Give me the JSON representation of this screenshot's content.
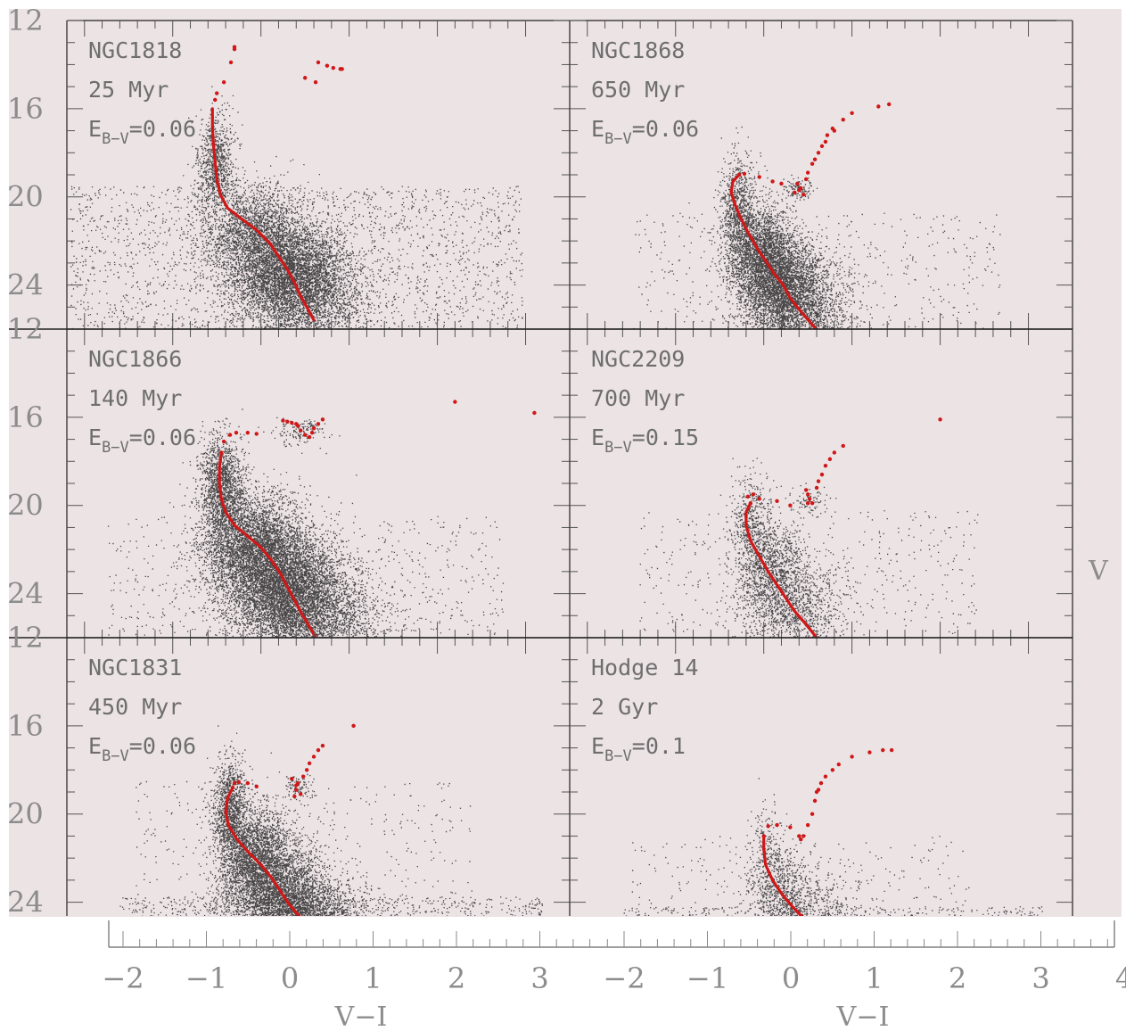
{
  "chart_data": {
    "type": "scatter",
    "layout": "3 rows x 2 columns of colour-magnitude diagrams sharing axes",
    "xlabel": "V−I",
    "ylabel": "V",
    "xlim": [
      -2.2,
      3.5
    ],
    "ylim": [
      12,
      26
    ],
    "y_inverted": true,
    "x_tick_labels": [
      "−2",
      "−1",
      "0",
      "1",
      "2",
      "3",
      "−2",
      "−1",
      "0",
      "1",
      "2",
      "3",
      "4"
    ],
    "x_ticks": [
      -2,
      -1,
      0,
      1,
      2,
      3
    ],
    "x_ticks_right": [
      -2,
      -1,
      0,
      1,
      2,
      3,
      4
    ],
    "y_tick_labels": [
      "12",
      "16",
      "20",
      "24"
    ],
    "y_ticks": [
      12,
      16,
      20,
      24
    ],
    "grid": false,
    "colors": {
      "stars": "#111111",
      "isochrone": "#d01818",
      "panel_bg": "#ece3e5",
      "label": "#6e6e6e"
    },
    "panels": [
      {
        "name": "NGC1818",
        "age": "25 Myr",
        "ebv_label": "E",
        "ebv_sub": "B−V",
        "ebv_value": "=0.06",
        "isochrone": [
          [
            -0.55,
            16.0
          ],
          [
            -0.55,
            16.8
          ],
          [
            -0.54,
            17.6
          ],
          [
            -0.52,
            18.4
          ],
          [
            -0.5,
            19.2
          ],
          [
            -0.46,
            19.9
          ],
          [
            -0.38,
            20.5
          ],
          [
            -0.22,
            21.0
          ],
          [
            -0.05,
            21.5
          ],
          [
            0.1,
            22.1
          ],
          [
            0.2,
            22.7
          ],
          [
            0.3,
            23.3
          ],
          [
            0.38,
            23.9
          ],
          [
            0.45,
            24.5
          ],
          [
            0.52,
            25.0
          ],
          [
            0.6,
            25.6
          ]
        ],
        "giants": [
          [
            -0.3,
            13.2
          ],
          [
            -0.3,
            13.3
          ],
          [
            -0.34,
            13.9
          ],
          [
            -0.42,
            14.8
          ],
          [
            -0.5,
            15.3
          ],
          [
            -0.52,
            15.6
          ],
          [
            0.65,
            13.9
          ],
          [
            0.75,
            14.05
          ],
          [
            0.82,
            14.15
          ],
          [
            0.9,
            14.2
          ],
          [
            0.92,
            14.2
          ],
          [
            0.5,
            14.6
          ],
          [
            0.62,
            14.8
          ]
        ],
        "stars": {
          "seed": 11,
          "ms": [
            [
              -0.52,
              18.5,
              0.1,
              900
            ],
            [
              -0.1,
              21.5,
              0.3,
              1800
            ],
            [
              0.3,
              23.3,
              0.35,
              4200
            ],
            [
              0.5,
              24.8,
              0.35,
              1800
            ]
          ],
          "field": [
            [
              0.4,
              23.0,
              1.6,
              2.5,
              2300
            ]
          ]
        }
      },
      {
        "name": "NGC1868",
        "age": "650 Myr",
        "ebv_label": "E",
        "ebv_sub": "B−V",
        "ebv_value": "=0.06",
        "isochrone": [
          [
            -0.28,
            19.0
          ],
          [
            -0.35,
            19.3
          ],
          [
            -0.37,
            19.8
          ],
          [
            -0.33,
            20.3
          ],
          [
            -0.27,
            20.9
          ],
          [
            -0.18,
            21.6
          ],
          [
            -0.08,
            22.3
          ],
          [
            0.02,
            22.9
          ],
          [
            0.12,
            23.5
          ],
          [
            0.22,
            24.0
          ],
          [
            0.3,
            24.6
          ],
          [
            0.42,
            25.2
          ],
          [
            0.55,
            25.8
          ],
          [
            0.6,
            26.0
          ]
        ],
        "giants": [
          [
            -0.28,
            19.0
          ],
          [
            -0.22,
            18.95
          ],
          [
            -0.05,
            19.1
          ],
          [
            0.1,
            19.3
          ],
          [
            0.2,
            19.4
          ],
          [
            0.35,
            19.8
          ],
          [
            0.38,
            19.4
          ],
          [
            0.42,
            19.6
          ],
          [
            0.45,
            19.9
          ],
          [
            0.4,
            19.7
          ],
          [
            0.48,
            19.2
          ],
          [
            0.5,
            18.9
          ],
          [
            0.55,
            18.5
          ],
          [
            0.58,
            18.3
          ],
          [
            0.62,
            18.0
          ],
          [
            0.66,
            17.7
          ],
          [
            0.7,
            17.5
          ],
          [
            0.72,
            17.2
          ],
          [
            0.78,
            16.9
          ],
          [
            0.8,
            17.0
          ],
          [
            0.9,
            16.5
          ],
          [
            1.0,
            16.2
          ],
          [
            1.3,
            15.9
          ],
          [
            1.42,
            15.8
          ]
        ],
        "stars": {
          "seed": 23,
          "ms": [
            [
              -0.3,
              20.3,
              0.1,
              700
            ],
            [
              -0.05,
              22.5,
              0.2,
              2400
            ],
            [
              0.2,
              24.0,
              0.25,
              3000
            ],
            [
              0.45,
              25.3,
              0.3,
              1500
            ]
          ],
          "clump": [
            [
              0.38,
              19.6,
              0.08,
              0.25,
              120
            ]
          ],
          "field": [
            [
              0.6,
              23.5,
              1.3,
              2.0,
              500
            ]
          ]
        }
      },
      {
        "name": "NGC1866",
        "age": "140 Myr",
        "ebv_label": "E",
        "ebv_sub": "B−V",
        "ebv_value": "=0.06",
        "isochrone": [
          [
            -0.45,
            17.6
          ],
          [
            -0.47,
            18.3
          ],
          [
            -0.47,
            19.0
          ],
          [
            -0.45,
            19.7
          ],
          [
            -0.4,
            20.3
          ],
          [
            -0.3,
            20.9
          ],
          [
            -0.15,
            21.4
          ],
          [
            0.0,
            21.9
          ],
          [
            0.12,
            22.5
          ],
          [
            0.22,
            23.1
          ],
          [
            0.3,
            23.7
          ],
          [
            0.38,
            24.3
          ],
          [
            0.46,
            24.9
          ],
          [
            0.55,
            25.5
          ],
          [
            0.62,
            26.0
          ]
        ],
        "giants": [
          [
            -0.45,
            17.6
          ],
          [
            -0.42,
            17.1
          ],
          [
            -0.35,
            16.8
          ],
          [
            -0.28,
            16.7
          ],
          [
            -0.15,
            16.7
          ],
          [
            -0.05,
            16.75
          ],
          [
            0.25,
            16.15
          ],
          [
            0.3,
            16.2
          ],
          [
            0.35,
            16.25
          ],
          [
            0.4,
            16.3
          ],
          [
            0.42,
            16.4
          ],
          [
            0.45,
            16.6
          ],
          [
            0.5,
            16.8
          ],
          [
            0.55,
            16.9
          ],
          [
            0.58,
            16.7
          ],
          [
            0.6,
            16.5
          ],
          [
            0.65,
            16.3
          ],
          [
            0.7,
            16.1
          ],
          [
            2.2,
            15.3
          ],
          [
            3.1,
            15.8
          ]
        ],
        "stars": {
          "seed": 37,
          "ms": [
            [
              -0.45,
              19.0,
              0.12,
              1500
            ],
            [
              -0.1,
              21.6,
              0.3,
              3500
            ],
            [
              0.25,
              23.6,
              0.35,
              5000
            ],
            [
              0.55,
              25.2,
              0.4,
              2500
            ]
          ],
          "clump": [
            [
              0.45,
              16.6,
              0.15,
              0.35,
              150
            ]
          ],
          "field": [
            [
              0.5,
              23.5,
              1.4,
              2.2,
              700
            ]
          ]
        }
      },
      {
        "name": "NGC2209",
        "age": "700 Myr",
        "ebv_label": "E",
        "ebv_sub": "B−V",
        "ebv_value": "=0.15",
        "isochrone": [
          [
            -0.15,
            19.9
          ],
          [
            -0.2,
            20.3
          ],
          [
            -0.2,
            20.9
          ],
          [
            -0.15,
            21.6
          ],
          [
            -0.05,
            22.3
          ],
          [
            0.05,
            23.0
          ],
          [
            0.15,
            23.6
          ],
          [
            0.25,
            24.2
          ],
          [
            0.35,
            24.8
          ],
          [
            0.48,
            25.4
          ],
          [
            0.6,
            26.0
          ]
        ],
        "giants": [
          [
            -0.15,
            19.9
          ],
          [
            -0.18,
            19.6
          ],
          [
            -0.12,
            19.5
          ],
          [
            -0.05,
            19.7
          ],
          [
            0.15,
            19.8
          ],
          [
            0.3,
            20.0
          ],
          [
            0.48,
            19.3
          ],
          [
            0.5,
            19.5
          ],
          [
            0.52,
            19.7
          ],
          [
            0.5,
            19.9
          ],
          [
            0.55,
            19.9
          ],
          [
            0.6,
            19.2
          ],
          [
            0.62,
            18.9
          ],
          [
            0.66,
            18.6
          ],
          [
            0.7,
            18.2
          ],
          [
            0.75,
            17.9
          ],
          [
            0.8,
            17.6
          ],
          [
            0.9,
            17.3
          ],
          [
            2.0,
            16.1
          ]
        ],
        "stars": {
          "seed": 41,
          "ms": [
            [
              -0.15,
              20.8,
              0.12,
              500
            ],
            [
              0.1,
              23.0,
              0.2,
              1200
            ],
            [
              0.35,
              24.8,
              0.3,
              1000
            ]
          ],
          "clump": [
            [
              0.52,
              19.7,
              0.1,
              0.3,
              80
            ]
          ],
          "field": [
            [
              0.5,
              23.0,
              1.2,
              2.0,
              450
            ]
          ]
        }
      },
      {
        "name": "NGC1831",
        "age": "450 Myr",
        "ebv_label": "E",
        "ebv_sub": "B−V",
        "ebv_value": "=0.06",
        "isochrone": [
          [
            -0.32,
            18.8
          ],
          [
            -0.38,
            19.3
          ],
          [
            -0.4,
            19.9
          ],
          [
            -0.37,
            20.5
          ],
          [
            -0.28,
            21.1
          ],
          [
            -0.15,
            21.7
          ],
          [
            0.0,
            22.3
          ],
          [
            0.12,
            22.9
          ],
          [
            0.22,
            23.5
          ],
          [
            0.32,
            24.1
          ],
          [
            0.45,
            24.7
          ],
          [
            0.6,
            25.4
          ],
          [
            0.75,
            26.0
          ]
        ],
        "giants": [
          [
            -0.32,
            18.8
          ],
          [
            -0.3,
            18.6
          ],
          [
            -0.25,
            18.55
          ],
          [
            -0.15,
            18.6
          ],
          [
            -0.05,
            18.75
          ],
          [
            0.35,
            18.4
          ],
          [
            0.4,
            18.7
          ],
          [
            0.45,
            19.1
          ],
          [
            0.38,
            19.2
          ],
          [
            0.4,
            18.9
          ],
          [
            0.42,
            18.6
          ],
          [
            0.48,
            18.3
          ],
          [
            0.52,
            18.0
          ],
          [
            0.55,
            17.7
          ],
          [
            0.6,
            17.4
          ],
          [
            0.65,
            17.1
          ],
          [
            0.7,
            16.9
          ],
          [
            1.05,
            16.0
          ]
        ],
        "stars": {
          "seed": 53,
          "ms": [
            [
              -0.35,
              19.8,
              0.1,
              1200
            ],
            [
              -0.05,
              22.0,
              0.22,
              2600
            ],
            [
              0.25,
              23.8,
              0.3,
              3200
            ],
            [
              0.6,
              25.3,
              0.35,
              2500
            ]
          ],
          "clump": [
            [
              0.42,
              18.8,
              0.1,
              0.3,
              100
            ]
          ],
          "field": [
            [
              0.8,
              25.0,
              1.5,
              0.9,
              1500
            ],
            [
              0.5,
              22.0,
              1.2,
              2.5,
              400
            ]
          ]
        }
      },
      {
        "name": "Hodge 14",
        "age": "2 Gyr",
        "ebv_label": "E",
        "ebv_sub": "B−V",
        "ebv_value": "=0.1",
        "isochrone": [
          [
            0.0,
            21.0
          ],
          [
            0.0,
            21.6
          ],
          [
            0.02,
            22.3
          ],
          [
            0.1,
            23.0
          ],
          [
            0.2,
            23.6
          ],
          [
            0.3,
            24.1
          ],
          [
            0.42,
            24.6
          ],
          [
            0.6,
            25.1
          ],
          [
            0.8,
            25.6
          ],
          [
            0.9,
            26.0
          ]
        ],
        "giants": [
          [
            0.0,
            21.0
          ],
          [
            0.05,
            20.55
          ],
          [
            0.15,
            20.5
          ],
          [
            0.3,
            20.6
          ],
          [
            0.4,
            21.0
          ],
          [
            0.42,
            21.15
          ],
          [
            0.45,
            21.0
          ],
          [
            0.5,
            20.5
          ],
          [
            0.55,
            20.0
          ],
          [
            0.58,
            19.4
          ],
          [
            0.6,
            19.0
          ],
          [
            0.62,
            18.9
          ],
          [
            0.65,
            18.6
          ],
          [
            0.7,
            18.3
          ],
          [
            0.78,
            18.0
          ],
          [
            0.85,
            17.75
          ],
          [
            1.0,
            17.4
          ],
          [
            1.2,
            17.2
          ],
          [
            1.35,
            17.1
          ],
          [
            1.45,
            17.1
          ]
        ],
        "stars": {
          "seed": 67,
          "ms": [
            [
              0.02,
              21.8,
              0.1,
              250
            ],
            [
              0.2,
              23.6,
              0.18,
              700
            ],
            [
              0.5,
              25.0,
              0.3,
              900
            ]
          ],
          "field": [
            [
              0.8,
              25.3,
              1.5,
              0.8,
              1200
            ],
            [
              0.4,
              23.5,
              1.2,
              1.8,
              300
            ]
          ]
        }
      }
    ]
  }
}
